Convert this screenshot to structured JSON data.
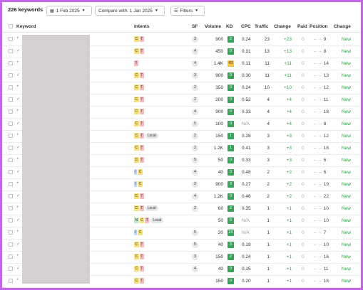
{
  "toolbar": {
    "keyword_count": "226 keywords",
    "date_label": "1 Feb 2025",
    "compare_label": "Compare with: 1 Jan 2025",
    "filters_label": "Filters"
  },
  "columns": {
    "keyword": "Keyword",
    "intents": "Intents",
    "sf": "SF",
    "volume": "Volume",
    "kd": "KD",
    "cpc": "CPC",
    "traffic": "Traffic",
    "change": "Change",
    "paid": "Paid",
    "position": "Position",
    "change2": "Change"
  },
  "colors": {
    "kd_green": "#3aa35a",
    "kd_yellow": "#f4c542",
    "positive": "#2e9e47"
  },
  "rows": [
    {
      "intents": [
        "C",
        "T"
      ],
      "local": "",
      "sf": "3",
      "volume": "900",
      "kd": "2",
      "kd_color": "#3aa35a",
      "cpc": "0.24",
      "traffic": "23",
      "change": "+23",
      "paid": "0",
      "position": "9",
      "change2": "New"
    },
    {
      "intents": [
        "C",
        "T"
      ],
      "local": "",
      "sf": "4",
      "volume": "450",
      "kd": "0",
      "kd_color": "#3aa35a",
      "cpc": "0.31",
      "traffic": "13",
      "change": "+13",
      "paid": "0",
      "position": "8",
      "change2": "New"
    },
    {
      "intents": [
        "T"
      ],
      "local": "",
      "sf": "4",
      "volume": "1.4K",
      "kd": "42",
      "kd_color": "#f4c542",
      "cpc": "0.11",
      "traffic": "11",
      "change": "+11",
      "paid": "0",
      "position": "14",
      "change2": "New"
    },
    {
      "intents": [
        "C",
        "T"
      ],
      "local": "",
      "sf": "3",
      "volume": "900",
      "kd": "0",
      "kd_color": "#3aa35a",
      "cpc": "0.30",
      "traffic": "11",
      "change": "+11",
      "paid": "0",
      "position": "13",
      "change2": "New"
    },
    {
      "intents": [
        "C",
        "T"
      ],
      "local": "",
      "sf": "2",
      "volume": "350",
      "kd": "0",
      "kd_color": "#3aa35a",
      "cpc": "0.24",
      "traffic": "10",
      "change": "+10",
      "paid": "0",
      "position": "12",
      "change2": "New"
    },
    {
      "intents": [
        "C",
        "T"
      ],
      "local": "",
      "sf": "2",
      "volume": "200",
      "kd": "0",
      "kd_color": "#3aa35a",
      "cpc": "0.52",
      "traffic": "4",
      "change": "+4",
      "paid": "0",
      "position": "11",
      "change2": "New"
    },
    {
      "intents": [
        "C",
        "T"
      ],
      "local": "",
      "sf": "4",
      "volume": "900",
      "kd": "0",
      "kd_color": "#3aa35a",
      "cpc": "0.33",
      "traffic": "4",
      "change": "+4",
      "paid": "0",
      "position": "18",
      "change2": "New"
    },
    {
      "intents": [
        "C",
        "T"
      ],
      "local": "",
      "sf": "5",
      "volume": "100",
      "kd": "0",
      "kd_color": "#3aa35a",
      "cpc": "N/A",
      "traffic": "4",
      "change": "+4",
      "paid": "0",
      "position": "8",
      "change2": "New"
    },
    {
      "intents": [
        "C",
        "T"
      ],
      "local": "Local",
      "sf": "2",
      "volume": "150",
      "kd": "1",
      "kd_color": "#3aa35a",
      "cpc": "0.28",
      "traffic": "3",
      "change": "+3",
      "paid": "0",
      "position": "12",
      "change2": "New"
    },
    {
      "intents": [
        "C",
        "T"
      ],
      "local": "",
      "sf": "2",
      "volume": "1.2K",
      "kd": "1",
      "kd_color": "#3aa35a",
      "cpc": "0.41",
      "traffic": "3",
      "change": "+3",
      "paid": "0",
      "position": "18",
      "change2": "New"
    },
    {
      "intents": [
        "C",
        "T"
      ],
      "local": "",
      "sf": "5",
      "volume": "50",
      "kd": "0",
      "kd_color": "#3aa35a",
      "cpc": "0.33",
      "traffic": "3",
      "change": "+3",
      "paid": "0",
      "position": "6",
      "change2": "New"
    },
    {
      "intents": [
        "I",
        "C"
      ],
      "local": "",
      "sf": "4",
      "volume": "40",
      "kd": "0",
      "kd_color": "#3aa35a",
      "cpc": "0.48",
      "traffic": "2",
      "change": "+2",
      "paid": "0",
      "position": "6",
      "change2": "New"
    },
    {
      "intents": [
        "I",
        "C"
      ],
      "local": "",
      "sf": "2",
      "volume": "900",
      "kd": "3",
      "kd_color": "#3aa35a",
      "cpc": "0.27",
      "traffic": "2",
      "change": "+2",
      "paid": "0",
      "position": "19",
      "change2": "New"
    },
    {
      "intents": [
        "C",
        "T"
      ],
      "local": "",
      "sf": "4",
      "volume": "1.2K",
      "kd": "0",
      "kd_color": "#3aa35a",
      "cpc": "0.46",
      "traffic": "2",
      "change": "+2",
      "paid": "0",
      "position": "22",
      "change2": "New"
    },
    {
      "intents": [
        "C",
        "T"
      ],
      "local": "Local",
      "sf": "2",
      "volume": "60",
      "kd": "2",
      "kd_color": "#3aa35a",
      "cpc": "0.35",
      "traffic": "1",
      "change": "+1",
      "paid": "0",
      "position": "10",
      "change2": "New"
    },
    {
      "intents": [
        "N",
        "C",
        "T"
      ],
      "local": "Local",
      "sf": "",
      "volume": "50",
      "kd": "6",
      "kd_color": "#3aa35a",
      "cpc": "N/A",
      "traffic": "1",
      "change": "+1",
      "paid": "0",
      "position": "10",
      "change2": "New"
    },
    {
      "intents": [
        "I",
        "C"
      ],
      "local": "",
      "sf": "5",
      "volume": "20",
      "kd": "24",
      "kd_color": "#3aa35a",
      "cpc": "N/A",
      "traffic": "1",
      "change": "+1",
      "paid": "0",
      "position": "7",
      "change2": "New"
    },
    {
      "intents": [
        "C",
        "T"
      ],
      "local": "",
      "sf": "5",
      "volume": "40",
      "kd": "3",
      "kd_color": "#3aa35a",
      "cpc": "0.19",
      "traffic": "1",
      "change": "+1",
      "paid": "0",
      "position": "10",
      "change2": "New"
    },
    {
      "intents": [
        "C",
        "T"
      ],
      "local": "",
      "sf": "3",
      "volume": "150",
      "kd": "2",
      "kd_color": "#3aa35a",
      "cpc": "0.24",
      "traffic": "1",
      "change": "+1",
      "paid": "0",
      "position": "16",
      "change2": "New"
    },
    {
      "intents": [
        "C",
        "T"
      ],
      "local": "",
      "sf": "4",
      "volume": "40",
      "kd": "0",
      "kd_color": "#3aa35a",
      "cpc": "0.15",
      "traffic": "1",
      "change": "+1",
      "paid": "0",
      "position": "11",
      "change2": "New"
    },
    {
      "intents": [
        "C",
        "T"
      ],
      "local": "",
      "sf": "",
      "volume": "150",
      "kd": "0",
      "kd_color": "#3aa35a",
      "cpc": "0.20",
      "traffic": "1",
      "change": "+1",
      "paid": "0",
      "position": "16",
      "change2": "New"
    }
  ]
}
